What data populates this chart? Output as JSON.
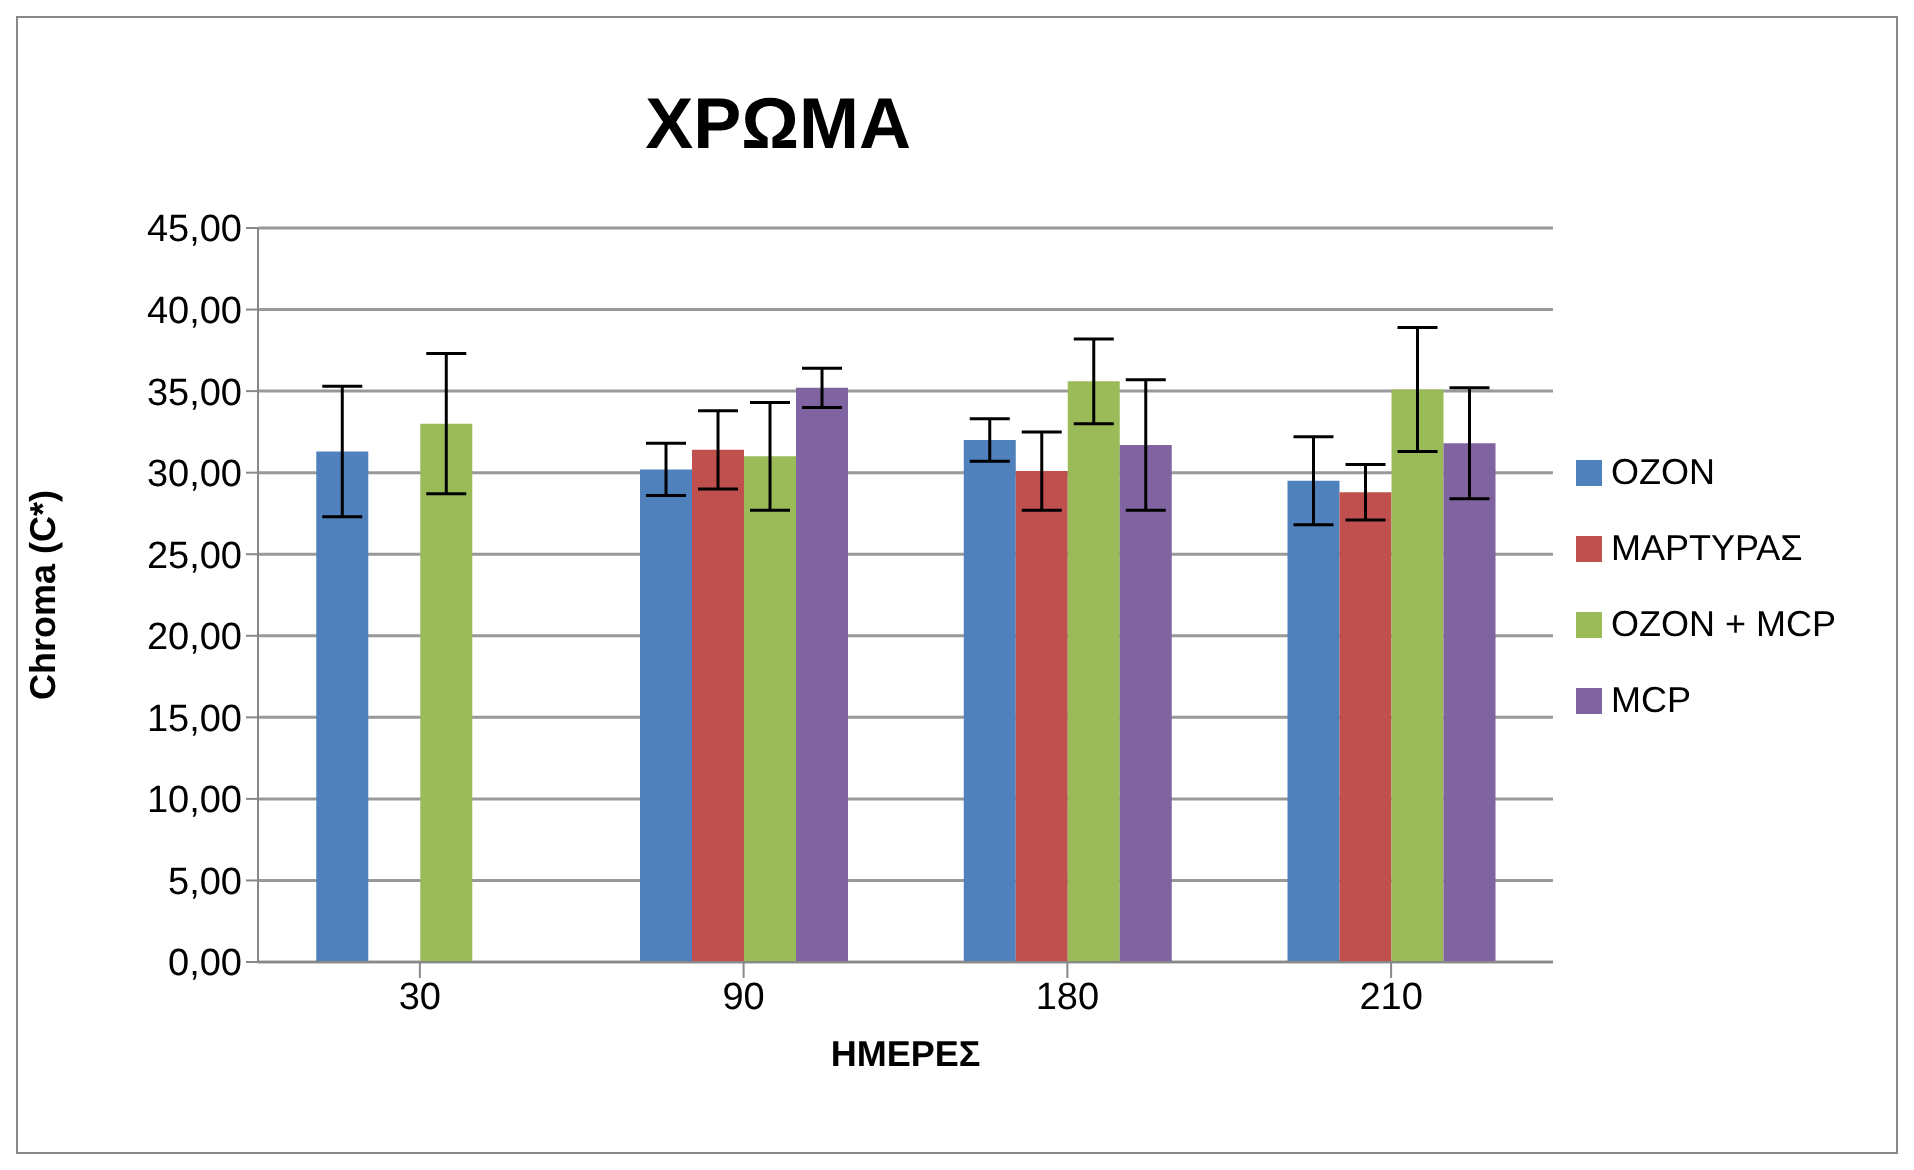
{
  "chart_data": {
    "type": "bar",
    "title": "ΧΡΩΜΑ",
    "xlabel": "ΗΜΕΡΕΣ",
    "ylabel": "Chroma (C*)",
    "categories": [
      "30",
      "90",
      "180",
      "210"
    ],
    "series": [
      {
        "name": "OZON",
        "color": "#4f81bd",
        "values": [
          31.3,
          30.2,
          32.0,
          29.5
        ],
        "errors": [
          4.0,
          1.6,
          1.3,
          2.7
        ]
      },
      {
        "name": "ΜΑΡΤΥΡΑΣ",
        "color": "#c0504d",
        "values": [
          null,
          31.4,
          30.1,
          28.8
        ],
        "errors": [
          null,
          2.4,
          2.4,
          1.7
        ]
      },
      {
        "name": "OZON + MCP",
        "color": "#9bbb59",
        "values": [
          33.0,
          31.0,
          35.6,
          35.1
        ],
        "errors": [
          4.3,
          3.3,
          2.6,
          3.8
        ]
      },
      {
        "name": "MCP",
        "color": "#8064a2",
        "values": [
          null,
          35.2,
          31.7,
          31.8
        ],
        "errors": [
          null,
          1.2,
          4.0,
          3.4
        ]
      }
    ],
    "ylim": [
      0,
      45
    ],
    "yticks": [
      {
        "value": 0,
        "label": "0,00"
      },
      {
        "value": 5,
        "label": "5,00"
      },
      {
        "value": 10,
        "label": "10,00"
      },
      {
        "value": 15,
        "label": "15,00"
      },
      {
        "value": 20,
        "label": "20,00"
      },
      {
        "value": 25,
        "label": "25,00"
      },
      {
        "value": 30,
        "label": "30,00"
      },
      {
        "value": 35,
        "label": "35,00"
      },
      {
        "value": 40,
        "label": "40,00"
      },
      {
        "value": 45,
        "label": "45,00"
      }
    ],
    "grid": "y",
    "legend": "right"
  }
}
